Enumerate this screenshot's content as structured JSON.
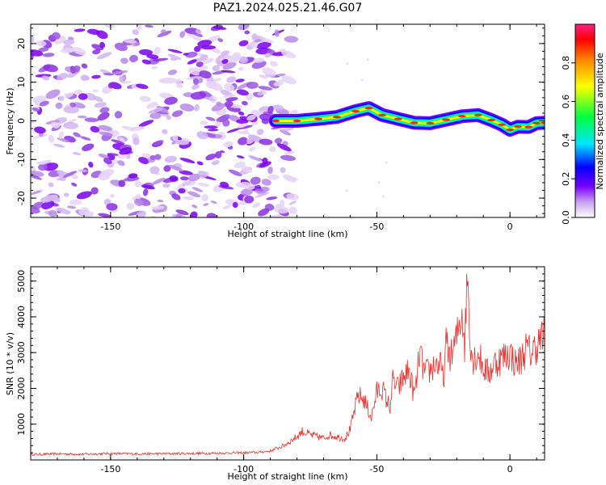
{
  "title": "PAZ1.2024.025.21.46.G07",
  "colors": {
    "snr_line": "#e8332e",
    "ridge_center": "#ff2020",
    "background": "#ffffff"
  },
  "chart_data": [
    {
      "type": "heatmap",
      "xlabel": "Height of straight line (km)",
      "ylabel": "Frequency (Hz)",
      "xlim": [
        -180,
        13
      ],
      "ylim": [
        -25,
        25
      ],
      "x_ticks": [
        -150,
        -100,
        -50,
        0
      ],
      "y_ticks": [
        -20,
        -10,
        0,
        10,
        20
      ],
      "x_tick_labels": [
        "-150",
        "-100",
        "-50",
        "0"
      ],
      "y_tick_labels": [
        "-20",
        "-10",
        "0",
        "10",
        "20"
      ],
      "noise_region_x": [
        -180,
        -85
      ],
      "signal_ridge": {
        "x": [
          -88,
          -80,
          -72,
          -65,
          -58,
          -53,
          -48,
          -42,
          -36,
          -30,
          -24,
          -18,
          -12,
          -7,
          -3,
          0,
          3,
          7,
          10,
          13
        ],
        "y": [
          0.0,
          0.0,
          0.5,
          1.0,
          2.5,
          3.3,
          1.5,
          0.5,
          -0.5,
          -0.6,
          0.3,
          1.2,
          1.5,
          0.2,
          -1.0,
          -2.3,
          -1.5,
          -1.6,
          -0.6,
          -0.5
        ]
      },
      "colorbar": {
        "label": "Normalized spectral amplitude",
        "range": [
          0,
          1
        ],
        "ticks": [
          0.0,
          0.2,
          0.4,
          0.6,
          0.8
        ],
        "tick_labels": [
          "0.0",
          "0.2",
          "0.4",
          "0.6",
          "0.8"
        ]
      },
      "grid": false
    },
    {
      "type": "line",
      "xlabel": "Height of straight line (km)",
      "ylabel": "SNR (10 * v/v)",
      "xlim": [
        -180,
        13
      ],
      "ylim": [
        0,
        5400
      ],
      "x_ticks": [
        -150,
        -100,
        -50,
        0
      ],
      "y_ticks": [
        1000,
        2000,
        3000,
        4000,
        5000
      ],
      "x_tick_labels": [
        "-150",
        "-100",
        "-50",
        "0"
      ],
      "y_tick_labels": [
        "1000",
        "2000",
        "3000",
        "4000",
        "5000"
      ],
      "series": [
        {
          "x": [
            -180,
            -170,
            -160,
            -150,
            -140,
            -130,
            -120,
            -110,
            -100,
            -95,
            -90,
            -85,
            -80,
            -78,
            -75,
            -72,
            -70,
            -68,
            -65,
            -62,
            -60,
            -58,
            -57,
            -55,
            -52,
            -50,
            -48,
            -46,
            -45,
            -44,
            -42,
            -40,
            -38,
            -36,
            -35,
            -34,
            -32,
            -30,
            -28,
            -26,
            -25,
            -24,
            -22,
            -20,
            -18,
            -17,
            -16,
            -15,
            -14,
            -12,
            -10,
            -8,
            -6,
            -4,
            -2,
            0,
            2,
            4,
            6,
            8,
            10,
            12,
            13
          ],
          "y": [
            150,
            170,
            160,
            180,
            170,
            175,
            180,
            190,
            200,
            210,
            250,
            400,
            650,
            800,
            700,
            650,
            600,
            700,
            650,
            600,
            850,
            1500,
            1800,
            1700,
            1200,
            1900,
            2000,
            1600,
            1500,
            2200,
            2000,
            2300,
            2500,
            1800,
            2200,
            3000,
            2400,
            2500,
            2700,
            2600,
            2200,
            3200,
            2900,
            3400,
            4200,
            3200,
            5300,
            3500,
            2800,
            3000,
            2600,
            2400,
            2700,
            2800,
            2900,
            3000,
            2700,
            2800,
            3100,
            3000,
            3200,
            3400,
            3500
          ]
        }
      ],
      "grid": false
    }
  ]
}
